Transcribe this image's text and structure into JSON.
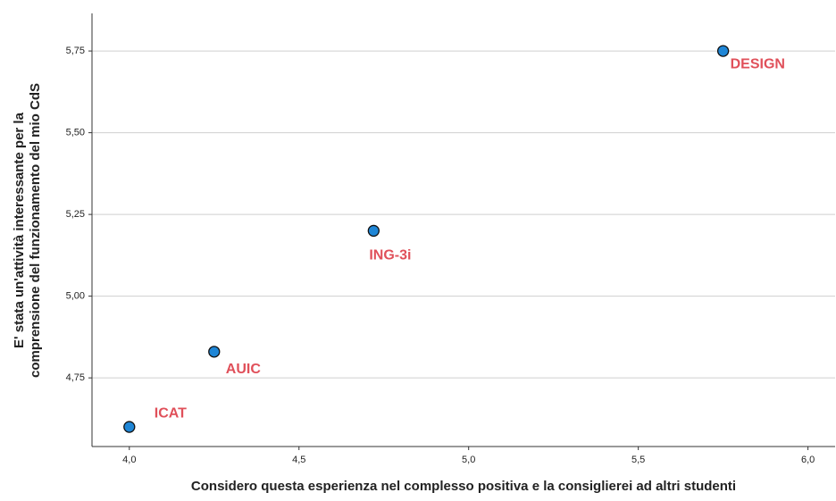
{
  "chart_data": {
    "type": "scatter",
    "xlabel": "Considero questa esperienza nel complesso positiva e la consiglierei ad altri studenti",
    "ylabel": [
      "E' stata un'attività interessante per la",
      "comprensione del funzionamento del mio CdS"
    ],
    "labels": [
      "ICAT",
      "AUIC",
      "ING-3i",
      "DESIGN"
    ],
    "x": [
      4.0,
      4.25,
      4.72,
      5.75
    ],
    "values": [
      4.6,
      4.83,
      5.2,
      5.75
    ],
    "color": "#1f86d6",
    "label_color": "#e0505a",
    "xlim": [
      3.89,
      6.08
    ],
    "ylim": [
      4.54,
      5.865
    ],
    "xticks": [
      {
        "value": 4.0,
        "label": "4,0"
      },
      {
        "value": 4.5,
        "label": "4,5"
      },
      {
        "value": 5.0,
        "label": "5,0"
      },
      {
        "value": 5.5,
        "label": "5,5"
      },
      {
        "value": 6.0,
        "label": "6,0"
      }
    ],
    "yticks": [
      {
        "value": 4.75,
        "label": "4,75"
      },
      {
        "value": 5.0,
        "label": "5,00"
      },
      {
        "value": 5.25,
        "label": "5,25"
      },
      {
        "value": 5.5,
        "label": "5,50"
      },
      {
        "value": 5.75,
        "label": "5,75"
      }
    ],
    "grid": true
  }
}
